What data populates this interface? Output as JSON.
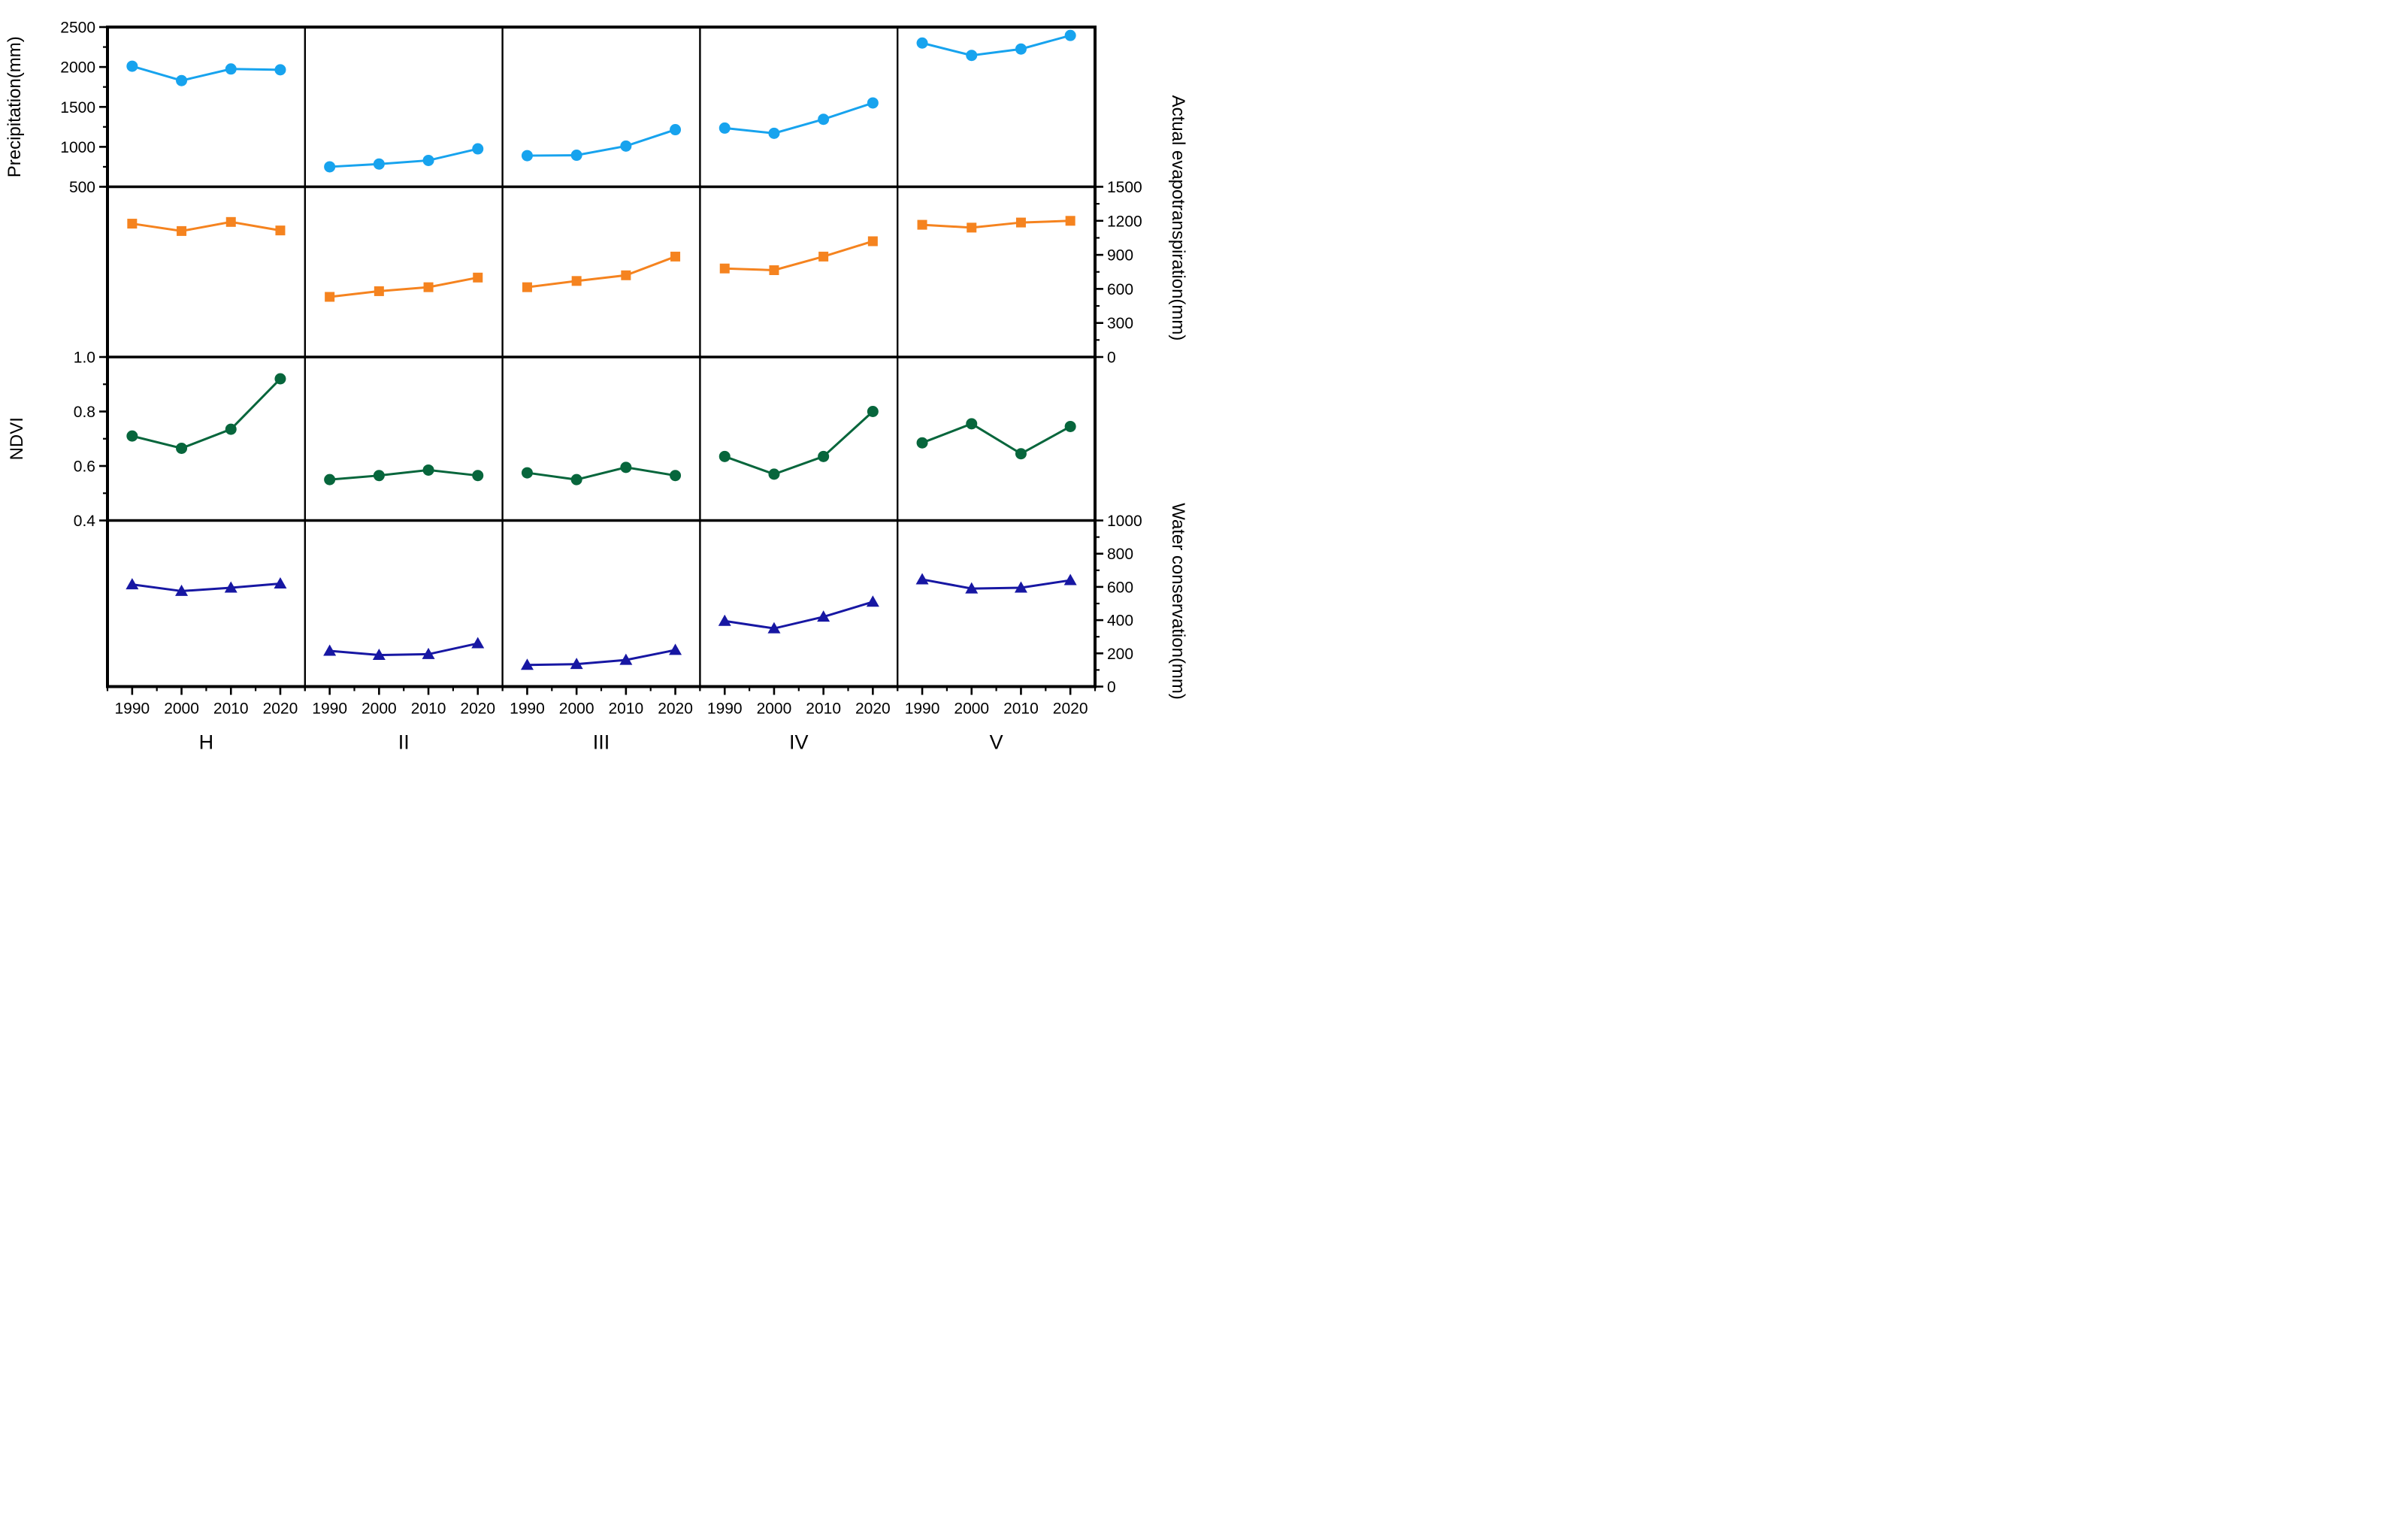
{
  "figure": {
    "background": "#ffffff",
    "frame_color": "#000000"
  },
  "chart_data": {
    "type": "line",
    "layout": "4 stacked variable rows x 5 region columns, shared year axis, grid of framed panels",
    "x": [
      1990,
      2000,
      2010,
      2020
    ],
    "x_tick_labels": [
      "1990",
      "2000",
      "2010",
      "2020"
    ],
    "panels": [
      "H",
      "II",
      "III",
      "IV",
      "V"
    ],
    "legend_position": "none",
    "grid": "off",
    "rows": [
      {
        "name": "precipitation",
        "axis_title": "Precipitation(mm)",
        "axis_side": "left",
        "ylim": [
          500,
          2500
        ],
        "tick_values": [
          500,
          1000,
          1500,
          2000,
          2500
        ],
        "tick_labels": [
          "500",
          "1000",
          "1500",
          "2000",
          "2500"
        ],
        "minor_step": 250,
        "color": "#17A3EE",
        "marker": "circle",
        "series": [
          {
            "name": "H",
            "values": [
              2010,
              1830,
              1975,
              1965
            ]
          },
          {
            "name": "II",
            "values": [
              750,
              785,
              830,
              975
            ]
          },
          {
            "name": "III",
            "values": [
              890,
              895,
              1010,
              1215
            ]
          },
          {
            "name": "IV",
            "values": [
              1235,
              1170,
              1345,
              1550
            ]
          },
          {
            "name": "V",
            "values": [
              2300,
              2145,
              2225,
              2395
            ]
          }
        ]
      },
      {
        "name": "actual-evapotranspiration",
        "axis_title": "Actual evapotranspiration(mm)",
        "axis_side": "right",
        "ylim": [
          0,
          1500
        ],
        "tick_values": [
          0,
          300,
          600,
          900,
          1200,
          1500
        ],
        "tick_labels": [
          "0",
          "300",
          "600",
          "900",
          "1200",
          "1500"
        ],
        "minor_step": 150,
        "color": "#F5831F",
        "marker": "square",
        "series": [
          {
            "name": "H",
            "values": [
              1175,
              1110,
              1190,
              1115
            ]
          },
          {
            "name": "II",
            "values": [
              530,
              580,
              615,
              700
            ]
          },
          {
            "name": "III",
            "values": [
              615,
              670,
              720,
              885
            ]
          },
          {
            "name": "IV",
            "values": [
              780,
              765,
              885,
              1020
            ]
          },
          {
            "name": "V",
            "values": [
              1165,
              1140,
              1185,
              1200
            ]
          }
        ]
      },
      {
        "name": "ndvi",
        "axis_title": "NDVI",
        "axis_side": "left",
        "ylim": [
          0.4,
          1.0
        ],
        "tick_values": [
          0.4,
          0.6,
          0.8,
          1.0
        ],
        "tick_labels": [
          "0.4",
          "0.6",
          "0.8",
          "1.0"
        ],
        "minor_step": 0.1,
        "color": "#07663C",
        "marker": "circle",
        "series": [
          {
            "name": "H",
            "values": [
              0.71,
              0.665,
              0.735,
              0.92
            ]
          },
          {
            "name": "II",
            "values": [
              0.55,
              0.565,
              0.585,
              0.565
            ]
          },
          {
            "name": "III",
            "values": [
              0.575,
              0.55,
              0.595,
              0.565
            ]
          },
          {
            "name": "IV",
            "values": [
              0.635,
              0.57,
              0.635,
              0.8
            ]
          },
          {
            "name": "V",
            "values": [
              0.685,
              0.755,
              0.645,
              0.745
            ]
          }
        ]
      },
      {
        "name": "water-conservation",
        "axis_title": "Water conservation(mm)",
        "axis_side": "right",
        "ylim": [
          0,
          1000
        ],
        "tick_values": [
          0,
          200,
          400,
          600,
          800,
          1000
        ],
        "tick_labels": [
          "0",
          "200",
          "400",
          "600",
          "800",
          "1000"
        ],
        "minor_step": 100,
        "color": "#1717A3",
        "marker": "triangle",
        "series": [
          {
            "name": "H",
            "values": [
              615,
              575,
              595,
              620
            ]
          },
          {
            "name": "II",
            "values": [
              215,
              190,
              195,
              260
            ]
          },
          {
            "name": "III",
            "values": [
              130,
              135,
              160,
              220
            ]
          },
          {
            "name": "IV",
            "values": [
              395,
              350,
              420,
              510
            ]
          },
          {
            "name": "V",
            "values": [
              645,
              590,
              595,
              640
            ]
          }
        ]
      }
    ]
  }
}
